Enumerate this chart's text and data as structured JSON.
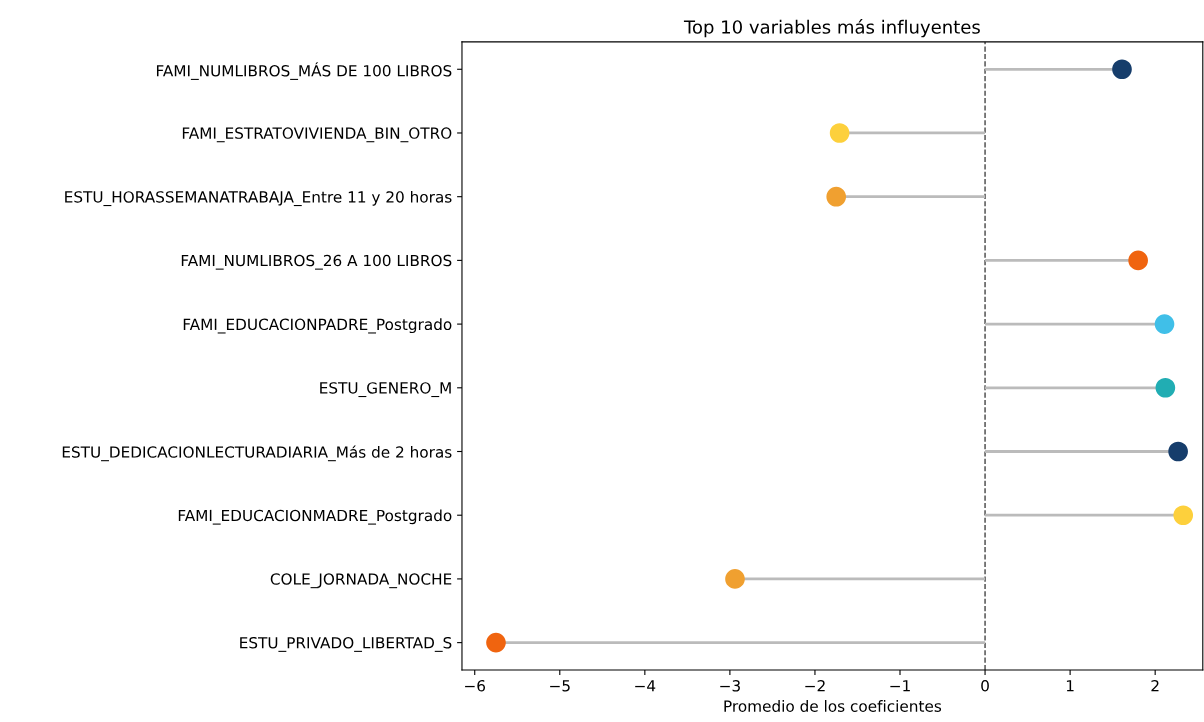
{
  "chart_data": {
    "type": "lollipop",
    "orientation": "horizontal",
    "title": "Top 10 variables más influyentes",
    "xlabel": "Promedio de los coeficientes",
    "categories": [
      "FAMI_NUMLIBROS_MÁS DE 100 LIBROS",
      "FAMI_ESTRATOVIVIENDA_BIN_OTRO",
      "ESTU_HORASSEMANATRABAJA_Entre 11 y 20 horas",
      "FAMI_NUMLIBROS_26 A 100 LIBROS",
      "FAMI_EDUCACIONPADRE_Postgrado",
      "ESTU_GENERO_M",
      "ESTU_DEDICACIONLECTURADIARIA_Más de 2 horas",
      "FAMI_EDUCACIONMADRE_Postgrado",
      "COLE_JORNADA_NOCHE",
      "ESTU_PRIVADO_LIBERTAD_S"
    ],
    "values": [
      1.61,
      -1.71,
      -1.75,
      1.8,
      2.11,
      2.12,
      2.27,
      2.33,
      -2.94,
      -5.75
    ],
    "colors": [
      "#163d6b",
      "#fdd03c",
      "#f0a030",
      "#f0640f",
      "#40bfe8",
      "#21adb3",
      "#163d6b",
      "#fdd03c",
      "#f0a030",
      "#f0640f"
    ],
    "xlim": [
      -6.15,
      2.56
    ],
    "xticks": [
      {
        "value": -6,
        "label": "−6"
      },
      {
        "value": -5,
        "label": "−5"
      },
      {
        "value": -4,
        "label": "−4"
      },
      {
        "value": -3,
        "label": "−3"
      },
      {
        "value": -2,
        "label": "−2"
      },
      {
        "value": -1,
        "label": "−1"
      },
      0,
      1,
      2
    ],
    "ref_lines": [
      {
        "axis": "x",
        "value": 0,
        "line_style": "dashed",
        "color": "#444444"
      }
    ],
    "marker": "circle",
    "grid": false
  }
}
